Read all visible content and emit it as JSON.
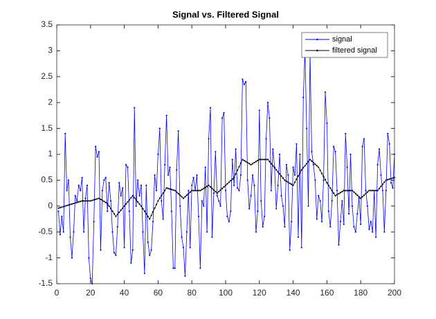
{
  "chart_data": {
    "type": "line",
    "title": "Signal vs. Filtered Signal",
    "x": [
      1,
      2,
      3,
      4,
      5,
      6,
      7,
      8,
      9,
      10,
      11,
      12,
      13,
      14,
      15,
      16,
      17,
      18,
      19,
      20,
      21,
      22,
      23,
      24,
      25,
      26,
      27,
      28,
      29,
      30,
      31,
      32,
      33,
      34,
      35,
      36,
      37,
      38,
      39,
      40,
      41,
      42,
      43,
      44,
      45,
      46,
      47,
      48,
      49,
      50,
      51,
      52,
      53,
      54,
      55,
      56,
      57,
      58,
      59,
      60,
      61,
      62,
      63,
      64,
      65,
      66,
      67,
      68,
      69,
      70,
      71,
      72,
      73,
      74,
      75,
      76,
      77,
      78,
      79,
      80,
      81,
      82,
      83,
      84,
      85,
      86,
      87,
      88,
      89,
      90,
      91,
      92,
      93,
      94,
      95,
      96,
      97,
      98,
      99,
      100,
      101,
      102,
      103,
      104,
      105,
      106,
      107,
      108,
      109,
      110,
      111,
      112,
      113,
      114,
      115,
      116,
      117,
      118,
      119,
      120,
      121,
      122,
      123,
      124,
      125,
      126,
      127,
      128,
      129,
      130,
      131,
      132,
      133,
      134,
      135,
      136,
      137,
      138,
      139,
      140,
      141,
      142,
      143,
      144,
      145,
      146,
      147,
      148,
      149,
      150,
      151,
      152,
      153,
      154,
      155,
      156,
      157,
      158,
      159,
      160,
      161,
      162,
      163,
      164,
      165,
      166,
      167,
      168,
      169,
      170,
      171,
      172,
      173,
      174,
      175,
      176,
      177,
      178,
      179,
      180,
      181,
      182,
      183,
      184,
      185,
      186,
      187,
      188,
      189,
      190,
      191,
      192,
      193,
      194,
      195,
      196,
      197,
      198,
      199,
      200
    ],
    "series": [
      {
        "name": "signal",
        "color": "#0000ff",
        "values": [
          -0.1,
          -0.55,
          -0.2,
          -0.5,
          1.4,
          0.3,
          0.5,
          -0.6,
          -1.0,
          -0.5,
          0.2,
          0.1,
          0.4,
          0.3,
          0.55,
          -0.5,
          0.15,
          0.4,
          -1.0,
          -1.4,
          -1.5,
          -0.3,
          1.15,
          0.95,
          1.05,
          -0.85,
          0.3,
          0.5,
          0.55,
          -0.1,
          0.45,
          0.1,
          -0.5,
          -0.9,
          -0.95,
          -0.4,
          0.45,
          0.2,
          0.35,
          -0.8,
          0.8,
          0.75,
          -0.1,
          -1.1,
          -0.85,
          1.9,
          0.0,
          0.5,
          0.2,
          0.4,
          -0.5,
          -1.3,
          0.4,
          -0.7,
          -0.95,
          -0.85,
          -0.3,
          0.6,
          0.3,
          1.0,
          1.5,
          0.1,
          -0.25,
          0.8,
          1.75,
          0.6,
          0.75,
          -0.1,
          -1.2,
          -1.2,
          0.7,
          1.45,
          0.0,
          -0.6,
          -0.8,
          -1.35,
          -0.5,
          0.3,
          -0.8,
          0.4,
          0.55,
          0.3,
          0.6,
          -0.2,
          -1.2,
          0.1,
          0.0,
          0.75,
          -0.5,
          1.3,
          1.9,
          -0.6,
          0.25,
          1.05,
          0.2,
          0.1,
          0.0,
          1.7,
          1.8,
          0.3,
          -0.2,
          -0.3,
          -0.1,
          0.9,
          0.4,
          1.1,
          0.35,
          0.3,
          0.6,
          2.45,
          2.35,
          2.4,
          0.5,
          -0.05,
          0.2,
          0.6,
          0.4,
          -0.5,
          -0.1,
          1.85,
          0.1,
          -0.4,
          -0.2,
          1.3,
          2.0,
          1.7,
          0.3,
          1.1,
          0.75,
          -0.05,
          0.4,
          1.0,
          0.2,
          0.0,
          -0.4,
          0.8,
          0.6,
          -0.85,
          -0.3,
          0.75,
          0.6,
          1.2,
          -0.6,
          1.0,
          -0.8,
          2.1,
          3.0,
          1.5,
          0.0,
          2.95,
          1.05,
          0.8,
          0.5,
          -0.25,
          0.2,
          0.1,
          -0.3,
          0.5,
          2.2,
          1.6,
          -0.1,
          -0.4,
          0.1,
          1.15,
          1.05,
          0.3,
          -0.75,
          -0.3,
          0.1,
          -0.35,
          1.4,
          0.75,
          -0.15,
          1.0,
          0.0,
          -0.4,
          -0.5,
          -0.15,
          0.15,
          -0.35,
          1.15,
          1.3,
          0.3,
          0.0,
          -0.45,
          -0.3,
          -0.5,
          0.3,
          -0.6,
          0.8,
          1.1,
          0.6,
          0.3,
          -0.5,
          0.3,
          1.4,
          1.2,
          0.45,
          0.35,
          1.0
        ]
      },
      {
        "name": "filtered signal",
        "color": "#000000",
        "values": [
          -0.04,
          -0.03,
          -0.02,
          -0.01,
          0.0,
          0.01,
          0.02,
          0.03,
          0.04,
          0.05,
          0.06,
          0.07,
          0.08,
          0.09,
          0.1,
          0.1,
          0.1,
          0.1,
          0.1,
          0.1,
          0.11,
          0.12,
          0.13,
          0.14,
          0.15,
          0.13,
          0.11,
          0.09,
          0.07,
          0.05,
          0.0,
          -0.05,
          -0.1,
          -0.15,
          -0.2,
          -0.16,
          -0.12,
          -0.08,
          -0.04,
          0.0,
          0.04,
          0.08,
          0.12,
          0.16,
          0.2,
          0.16,
          0.12,
          0.08,
          0.04,
          0.0,
          -0.05,
          -0.1,
          -0.15,
          -0.2,
          -0.25,
          -0.18,
          -0.11,
          -0.04,
          0.03,
          0.1,
          0.15,
          0.2,
          0.25,
          0.3,
          0.35,
          0.34,
          0.33,
          0.32,
          0.31,
          0.3,
          0.27,
          0.24,
          0.21,
          0.18,
          0.15,
          0.18,
          0.21,
          0.24,
          0.27,
          0.3,
          0.3,
          0.3,
          0.3,
          0.3,
          0.3,
          0.32,
          0.34,
          0.36,
          0.38,
          0.4,
          0.37,
          0.34,
          0.31,
          0.28,
          0.25,
          0.28,
          0.31,
          0.34,
          0.37,
          0.4,
          0.43,
          0.46,
          0.49,
          0.52,
          0.55,
          0.62,
          0.69,
          0.76,
          0.83,
          0.9,
          0.88,
          0.86,
          0.84,
          0.82,
          0.8,
          0.82,
          0.84,
          0.86,
          0.88,
          0.9,
          0.9,
          0.9,
          0.9,
          0.9,
          0.9,
          0.86,
          0.82,
          0.78,
          0.74,
          0.7,
          0.66,
          0.62,
          0.58,
          0.54,
          0.5,
          0.48,
          0.46,
          0.44,
          0.42,
          0.4,
          0.46,
          0.52,
          0.58,
          0.64,
          0.7,
          0.74,
          0.78,
          0.82,
          0.86,
          0.9,
          0.87,
          0.84,
          0.81,
          0.78,
          0.75,
          0.69,
          0.63,
          0.57,
          0.51,
          0.45,
          0.4,
          0.35,
          0.3,
          0.25,
          0.2,
          0.22,
          0.24,
          0.26,
          0.28,
          0.3,
          0.3,
          0.3,
          0.3,
          0.3,
          0.3,
          0.27,
          0.24,
          0.21,
          0.18,
          0.15,
          0.18,
          0.21,
          0.24,
          0.27,
          0.3,
          0.3,
          0.3,
          0.3,
          0.3,
          0.3,
          0.34,
          0.38,
          0.42,
          0.46,
          0.5,
          0.51,
          0.52,
          0.53,
          0.54,
          0.55
        ]
      }
    ],
    "xlim": [
      0,
      200
    ],
    "xticks": [
      0,
      20,
      40,
      60,
      80,
      100,
      120,
      140,
      160,
      180,
      200
    ],
    "ylim": [
      -1.5,
      3.5
    ],
    "yticks": [
      -1.5,
      -1,
      -0.5,
      0,
      0.5,
      1,
      1.5,
      2,
      2.5,
      3,
      3.5
    ],
    "legend": "top-right"
  }
}
